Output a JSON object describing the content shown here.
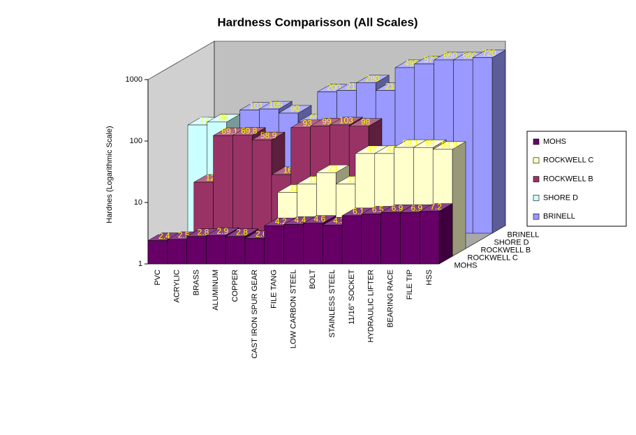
{
  "chart_data": {
    "type": "bar3d",
    "title": "Hardness Comparisson (All Scales)",
    "y_label": "Hardnes (Logarithmic Scale)",
    "log_scale": true,
    "grid": false,
    "legend": "right",
    "categories": [
      "PVC",
      "ACRYLIC",
      "BRASS",
      "ALUMINUM",
      "COPPER",
      "CAST IRON SPUR GEAR",
      "FILE TANG",
      "LOW CARBON STEEL",
      "BOLT",
      "STAINLESS STEEL",
      "11/16\" SOCKET",
      "HYDRAULIC LIFTER",
      "BEARING RACE",
      "FILE TIP",
      "HSS"
    ],
    "series": [
      {
        "name": "MOHS",
        "color": "#660066",
        "values": [
          2.4,
          2.5,
          2.8,
          2.9,
          2.8,
          2.6,
          4.2,
          4.4,
          4.6,
          4.3,
          6.1,
          6.5,
          6.9,
          6.9,
          7.2
        ]
      },
      {
        "name": "ROCKWELL C",
        "color": "#ffffcc",
        "values": [
          null,
          null,
          null,
          null,
          null,
          null,
          11,
          15,
          23,
          15,
          47,
          47,
          59.1,
          59,
          54.9
        ]
      },
      {
        "name": "ROCKWELL B",
        "color": "#993366",
        "values": [
          null,
          12,
          69.1,
          69.8,
          58.9,
          16,
          93,
          99,
          103,
          98,
          null,
          null,
          null,
          null,
          null
        ]
      },
      {
        "name": "SHORE D",
        "color": "#ccffff",
        "values": [
          77,
          86,
          null,
          null,
          null,
          null,
          null,
          null,
          null,
          null,
          null,
          null,
          null,
          null,
          null
        ]
      },
      {
        "name": "BRINELL",
        "color": "#9999ff",
        "values": [
          null,
          null,
          101,
          105,
          90,
          65,
          200,
          210,
          280,
          210,
          495,
          570,
          660,
          660,
          720
        ]
      }
    ],
    "ylim": [
      1,
      1000
    ],
    "yticks": [
      1,
      10,
      100,
      1000
    ]
  }
}
